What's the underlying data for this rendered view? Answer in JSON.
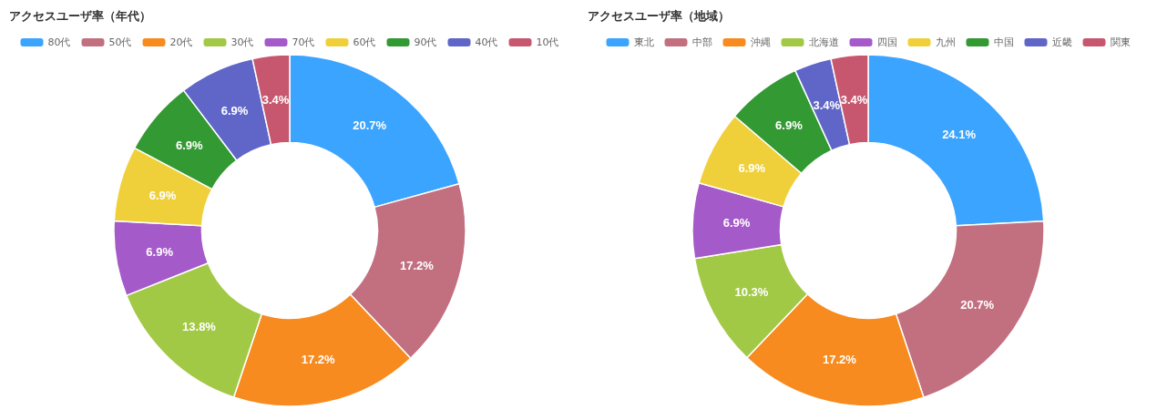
{
  "chart_data": [
    {
      "type": "donut",
      "title": "アクセスユーザ率（年代）",
      "legend": "top",
      "categories": [
        "80代",
        "50代",
        "20代",
        "30代",
        "70代",
        "60代",
        "90代",
        "40代",
        "10代"
      ],
      "values": [
        20.7,
        17.2,
        17.2,
        13.8,
        6.9,
        6.9,
        6.9,
        6.9,
        3.4
      ],
      "value_labels": [
        "20.7%",
        "17.2%",
        "17.2%",
        "13.8%",
        "6.9%",
        "6.9%",
        "6.9%",
        "6.9%",
        "3.4%"
      ],
      "colors": [
        "#3ba4ff",
        "#c27080",
        "#f78b1f",
        "#a2c946",
        "#a45ac9",
        "#f0d03a",
        "#339933",
        "#6066c8",
        "#c7576f"
      ]
    },
    {
      "type": "donut",
      "title": "アクセスユーザ率（地域）",
      "legend": "top",
      "categories": [
        "東北",
        "中部",
        "沖縄",
        "北海道",
        "四国",
        "九州",
        "中国",
        "近畿",
        "関東"
      ],
      "values": [
        24.1,
        20.7,
        17.2,
        10.3,
        6.9,
        6.9,
        6.9,
        3.4,
        3.4
      ],
      "value_labels": [
        "24.1%",
        "20.7%",
        "17.2%",
        "10.3%",
        "6.9%",
        "6.9%",
        "6.9%",
        "3.4%",
        "3.4%"
      ],
      "colors": [
        "#3ba4ff",
        "#c27080",
        "#f78b1f",
        "#a2c946",
        "#a45ac9",
        "#f0d03a",
        "#339933",
        "#6066c8",
        "#c7576f"
      ]
    }
  ]
}
